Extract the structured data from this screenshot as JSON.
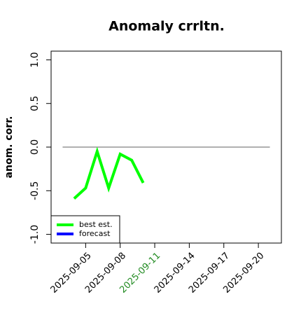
{
  "chart_data": {
    "type": "line",
    "title": "Anomaly crrltn.",
    "ylabel": "anom. corr.",
    "x": [
      "2025-09-04",
      "2025-09-05",
      "2025-09-06",
      "2025-09-07",
      "2025-09-08",
      "2025-09-09",
      "2025-09-10"
    ],
    "series": [
      {
        "name": "best est.",
        "color": "#00ff00",
        "values": [
          -0.59,
          -0.47,
          -0.05,
          -0.47,
          -0.08,
          -0.15,
          -0.41
        ]
      },
      {
        "name": "forecast",
        "color": "#0000ff",
        "values": [
          null,
          null,
          null,
          null,
          null,
          null,
          null
        ]
      }
    ],
    "xlim": [
      "2025-09-02",
      "2025-09-22"
    ],
    "xticks": [
      "2025-09-05",
      "2025-09-08",
      "2025-09-11",
      "2025-09-14",
      "2025-09-17",
      "2025-09-20"
    ],
    "xtick_highlight": "2025-09-11",
    "highlight_color": "#228b22",
    "ylim": [
      -1.1,
      1.1
    ],
    "yticks": [
      {
        "value": -1,
        "label": "-1.0"
      },
      {
        "value": -0.5,
        "label": "-0.5"
      },
      {
        "value": 0,
        "label": "0.0"
      },
      {
        "value": 0.5,
        "label": "0.5"
      },
      {
        "value": 1,
        "label": "1.0"
      }
    ],
    "hline": 0,
    "hline_color": "#808080",
    "legend": "bottom-left"
  }
}
